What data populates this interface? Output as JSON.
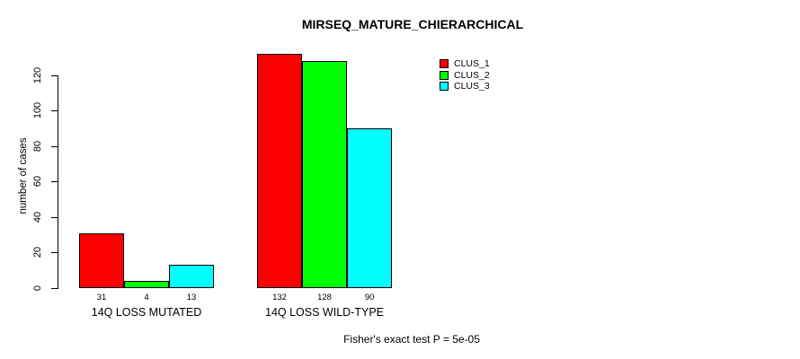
{
  "chart_data": {
    "type": "bar",
    "title": "MIRSEQ_MATURE_CHIERARCHICAL",
    "ylabel": "number of cases",
    "xlabel": "",
    "categories": [
      "14Q LOSS MUTATED",
      "14Q LOSS WILD-TYPE"
    ],
    "series": [
      {
        "name": "CLUS_1",
        "color": "#ff0000",
        "values": [
          31,
          132
        ]
      },
      {
        "name": "CLUS_2",
        "color": "#00ff00",
        "values": [
          4,
          128
        ]
      },
      {
        "name": "CLUS_3",
        "color": "#00ffff",
        "values": [
          13,
          90
        ]
      }
    ],
    "bar_value_labels": [
      [
        "31",
        "4",
        "13"
      ],
      [
        "132",
        "128",
        "90"
      ]
    ],
    "yticks": [
      0,
      20,
      40,
      60,
      80,
      100,
      120
    ],
    "ylim": [
      0,
      132
    ],
    "grid": false,
    "legend_position": "top-right",
    "caption": "Fisher's exact test P = 5e-05"
  }
}
